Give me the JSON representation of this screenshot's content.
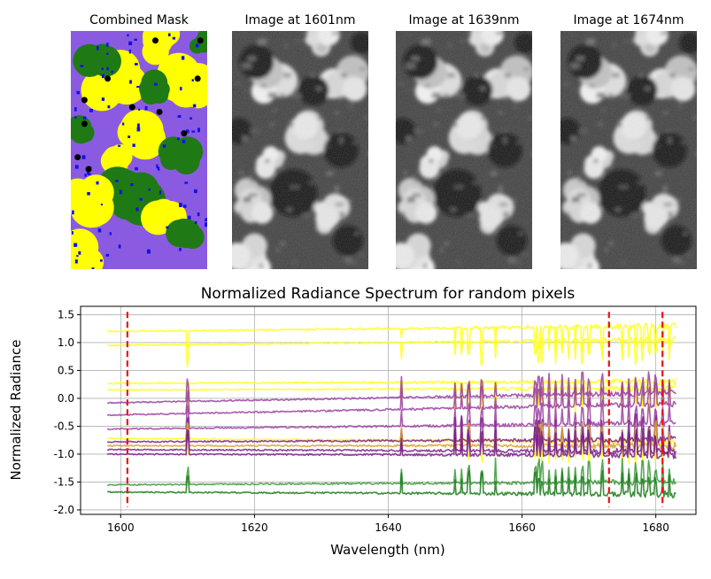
{
  "panels": [
    {
      "title": "Combined Mask",
      "kind": "mask"
    },
    {
      "title": "Image at 1601nm",
      "kind": "gray"
    },
    {
      "title": "Image at 1639nm",
      "kind": "gray"
    },
    {
      "title": "Image at 1674nm",
      "kind": "gray"
    }
  ],
  "mask_colors": {
    "background": "#8a5be0",
    "class_a": "#ffff00",
    "class_b": "#1f7a16",
    "class_c": "#1010ee",
    "points": "#000000"
  },
  "chart_data": {
    "type": "line",
    "title": "Normalized Radiance Spectrum for random pixels",
    "xlabel": "Wavelength (nm)",
    "ylabel": "Normalized Radiance",
    "xlim": [
      1594,
      1686
    ],
    "ylim": [
      -2.08,
      1.65
    ],
    "xticks": [
      1600,
      1620,
      1640,
      1660,
      1680
    ],
    "yticks": [
      1.5,
      1.0,
      0.5,
      0.0,
      -0.5,
      -1.0,
      -1.5,
      -2.0
    ],
    "grid": true,
    "wavelength_range": [
      1598,
      1683
    ],
    "marked_wavelengths": [
      1601,
      1673,
      1681
    ],
    "marker_color": "#ee1111",
    "series": [
      {
        "name": "yellow-1",
        "class": "yellow",
        "color": "#ffff1a",
        "start": 1.2,
        "end": 1.3
      },
      {
        "name": "yellow-2",
        "class": "yellow",
        "color": "#ffff1a",
        "start": 0.95,
        "end": 1.05
      },
      {
        "name": "yellow-3",
        "class": "yellow",
        "color": "#ffff1a",
        "start": 0.27,
        "end": 0.3
      },
      {
        "name": "yellow-4",
        "class": "yellow",
        "color": "#ffff1a",
        "start": 0.15,
        "end": 0.18
      },
      {
        "name": "purple-1",
        "class": "purple",
        "color": "#9b3ea0",
        "start": -0.08,
        "end": 0.1
      },
      {
        "name": "purple-2",
        "class": "purple",
        "color": "#9b3ea0",
        "start": -0.3,
        "end": -0.1
      },
      {
        "name": "purple-3",
        "class": "purple",
        "color": "#9b3ea0",
        "start": -0.55,
        "end": -0.45
      },
      {
        "name": "yellow-5",
        "class": "yellow",
        "color": "#ffff1a",
        "start": -0.72,
        "end": -0.78
      },
      {
        "name": "purple-4",
        "class": "purple",
        "color": "#7a1f8a",
        "start": -0.78,
        "end": -0.74
      },
      {
        "name": "orange-1",
        "class": "orange",
        "color": "#d9a030",
        "start": -0.85,
        "end": -0.85
      },
      {
        "name": "purple-5",
        "class": "purple",
        "color": "#7a1f8a",
        "start": -0.92,
        "end": -0.95
      },
      {
        "name": "purple-6",
        "class": "purple",
        "color": "#7a1f8a",
        "start": -1.0,
        "end": -1.02
      },
      {
        "name": "green-1",
        "class": "green",
        "color": "#3a9a3a",
        "start": -1.55,
        "end": -1.5
      },
      {
        "name": "green-2",
        "class": "green",
        "color": "#1a7a1a",
        "start": -1.68,
        "end": -1.72
      }
    ]
  }
}
